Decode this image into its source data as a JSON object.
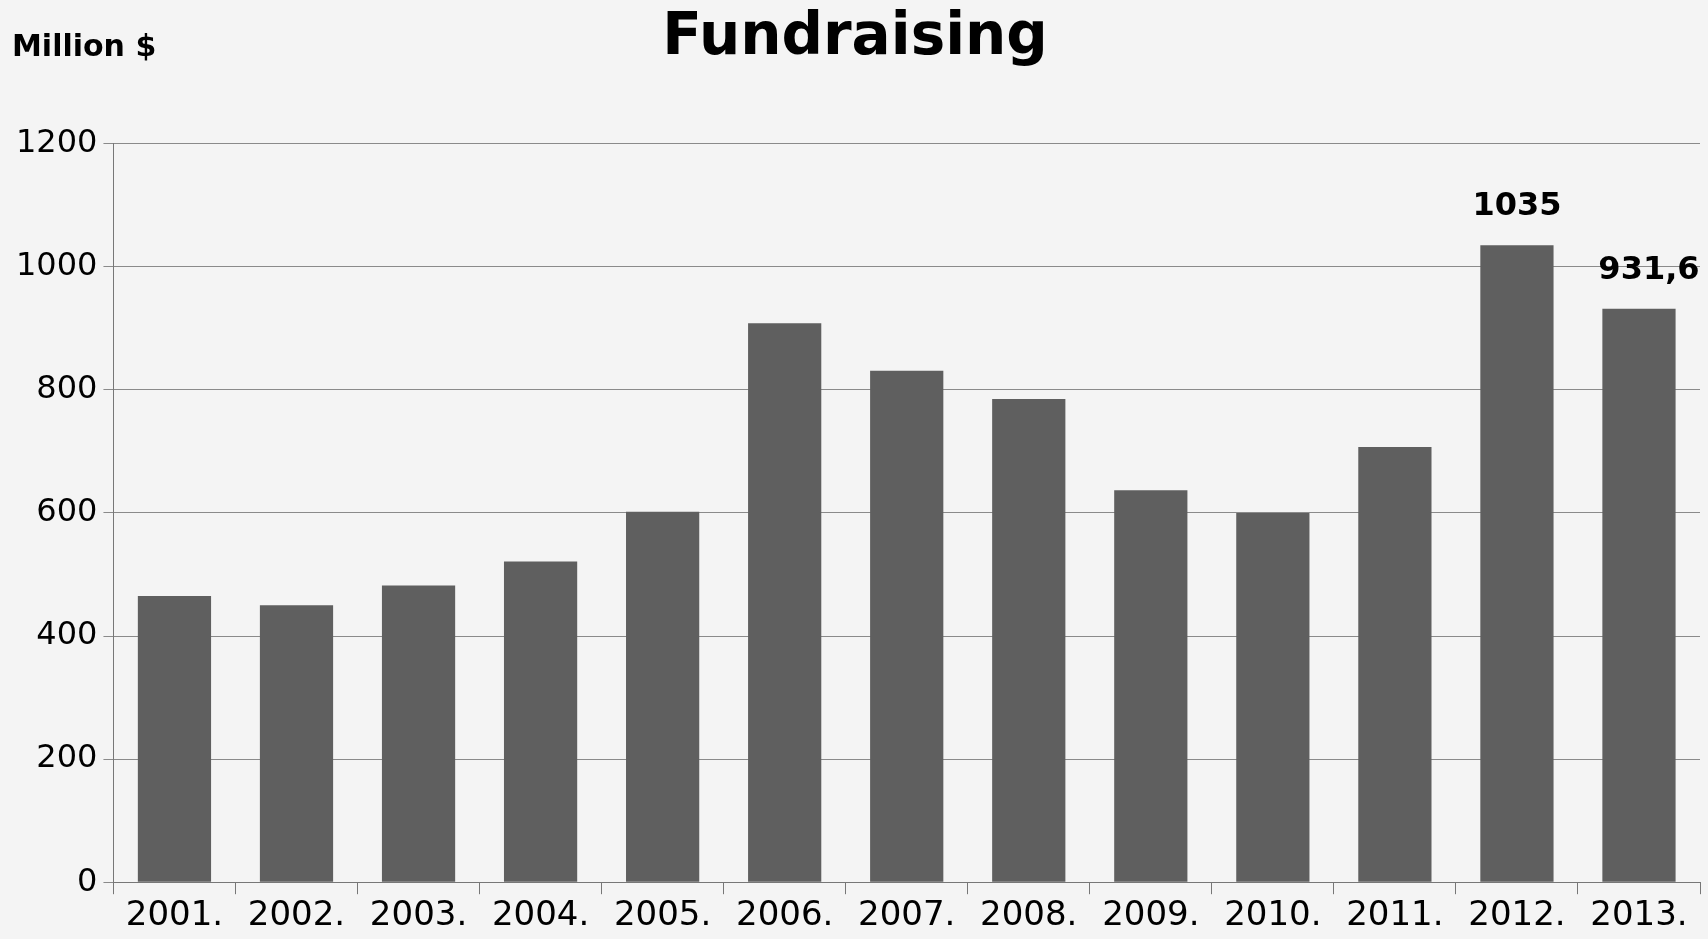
{
  "chart_data": {
    "type": "bar",
    "title": "Fundraising",
    "ylabel": "Million $",
    "categories": [
      "2001.",
      "2002.",
      "2003.",
      "2004.",
      "2005.",
      "2006.",
      "2007.",
      "2008.",
      "2009.",
      "2010.",
      "2011.",
      "2012.",
      "2013."
    ],
    "values": [
      465,
      450,
      482,
      521,
      602,
      908,
      831,
      785,
      637,
      600,
      707,
      1035,
      931.6
    ],
    "value_labels": [
      null,
      null,
      null,
      null,
      null,
      null,
      null,
      null,
      null,
      null,
      null,
      "1035",
      "931,6"
    ],
    "color": "#5f5f5f",
    "ylim": [
      0,
      1200
    ],
    "yticks": [
      0,
      200,
      400,
      600,
      800,
      1000,
      1200
    ],
    "grid": "y",
    "legend": false
  }
}
